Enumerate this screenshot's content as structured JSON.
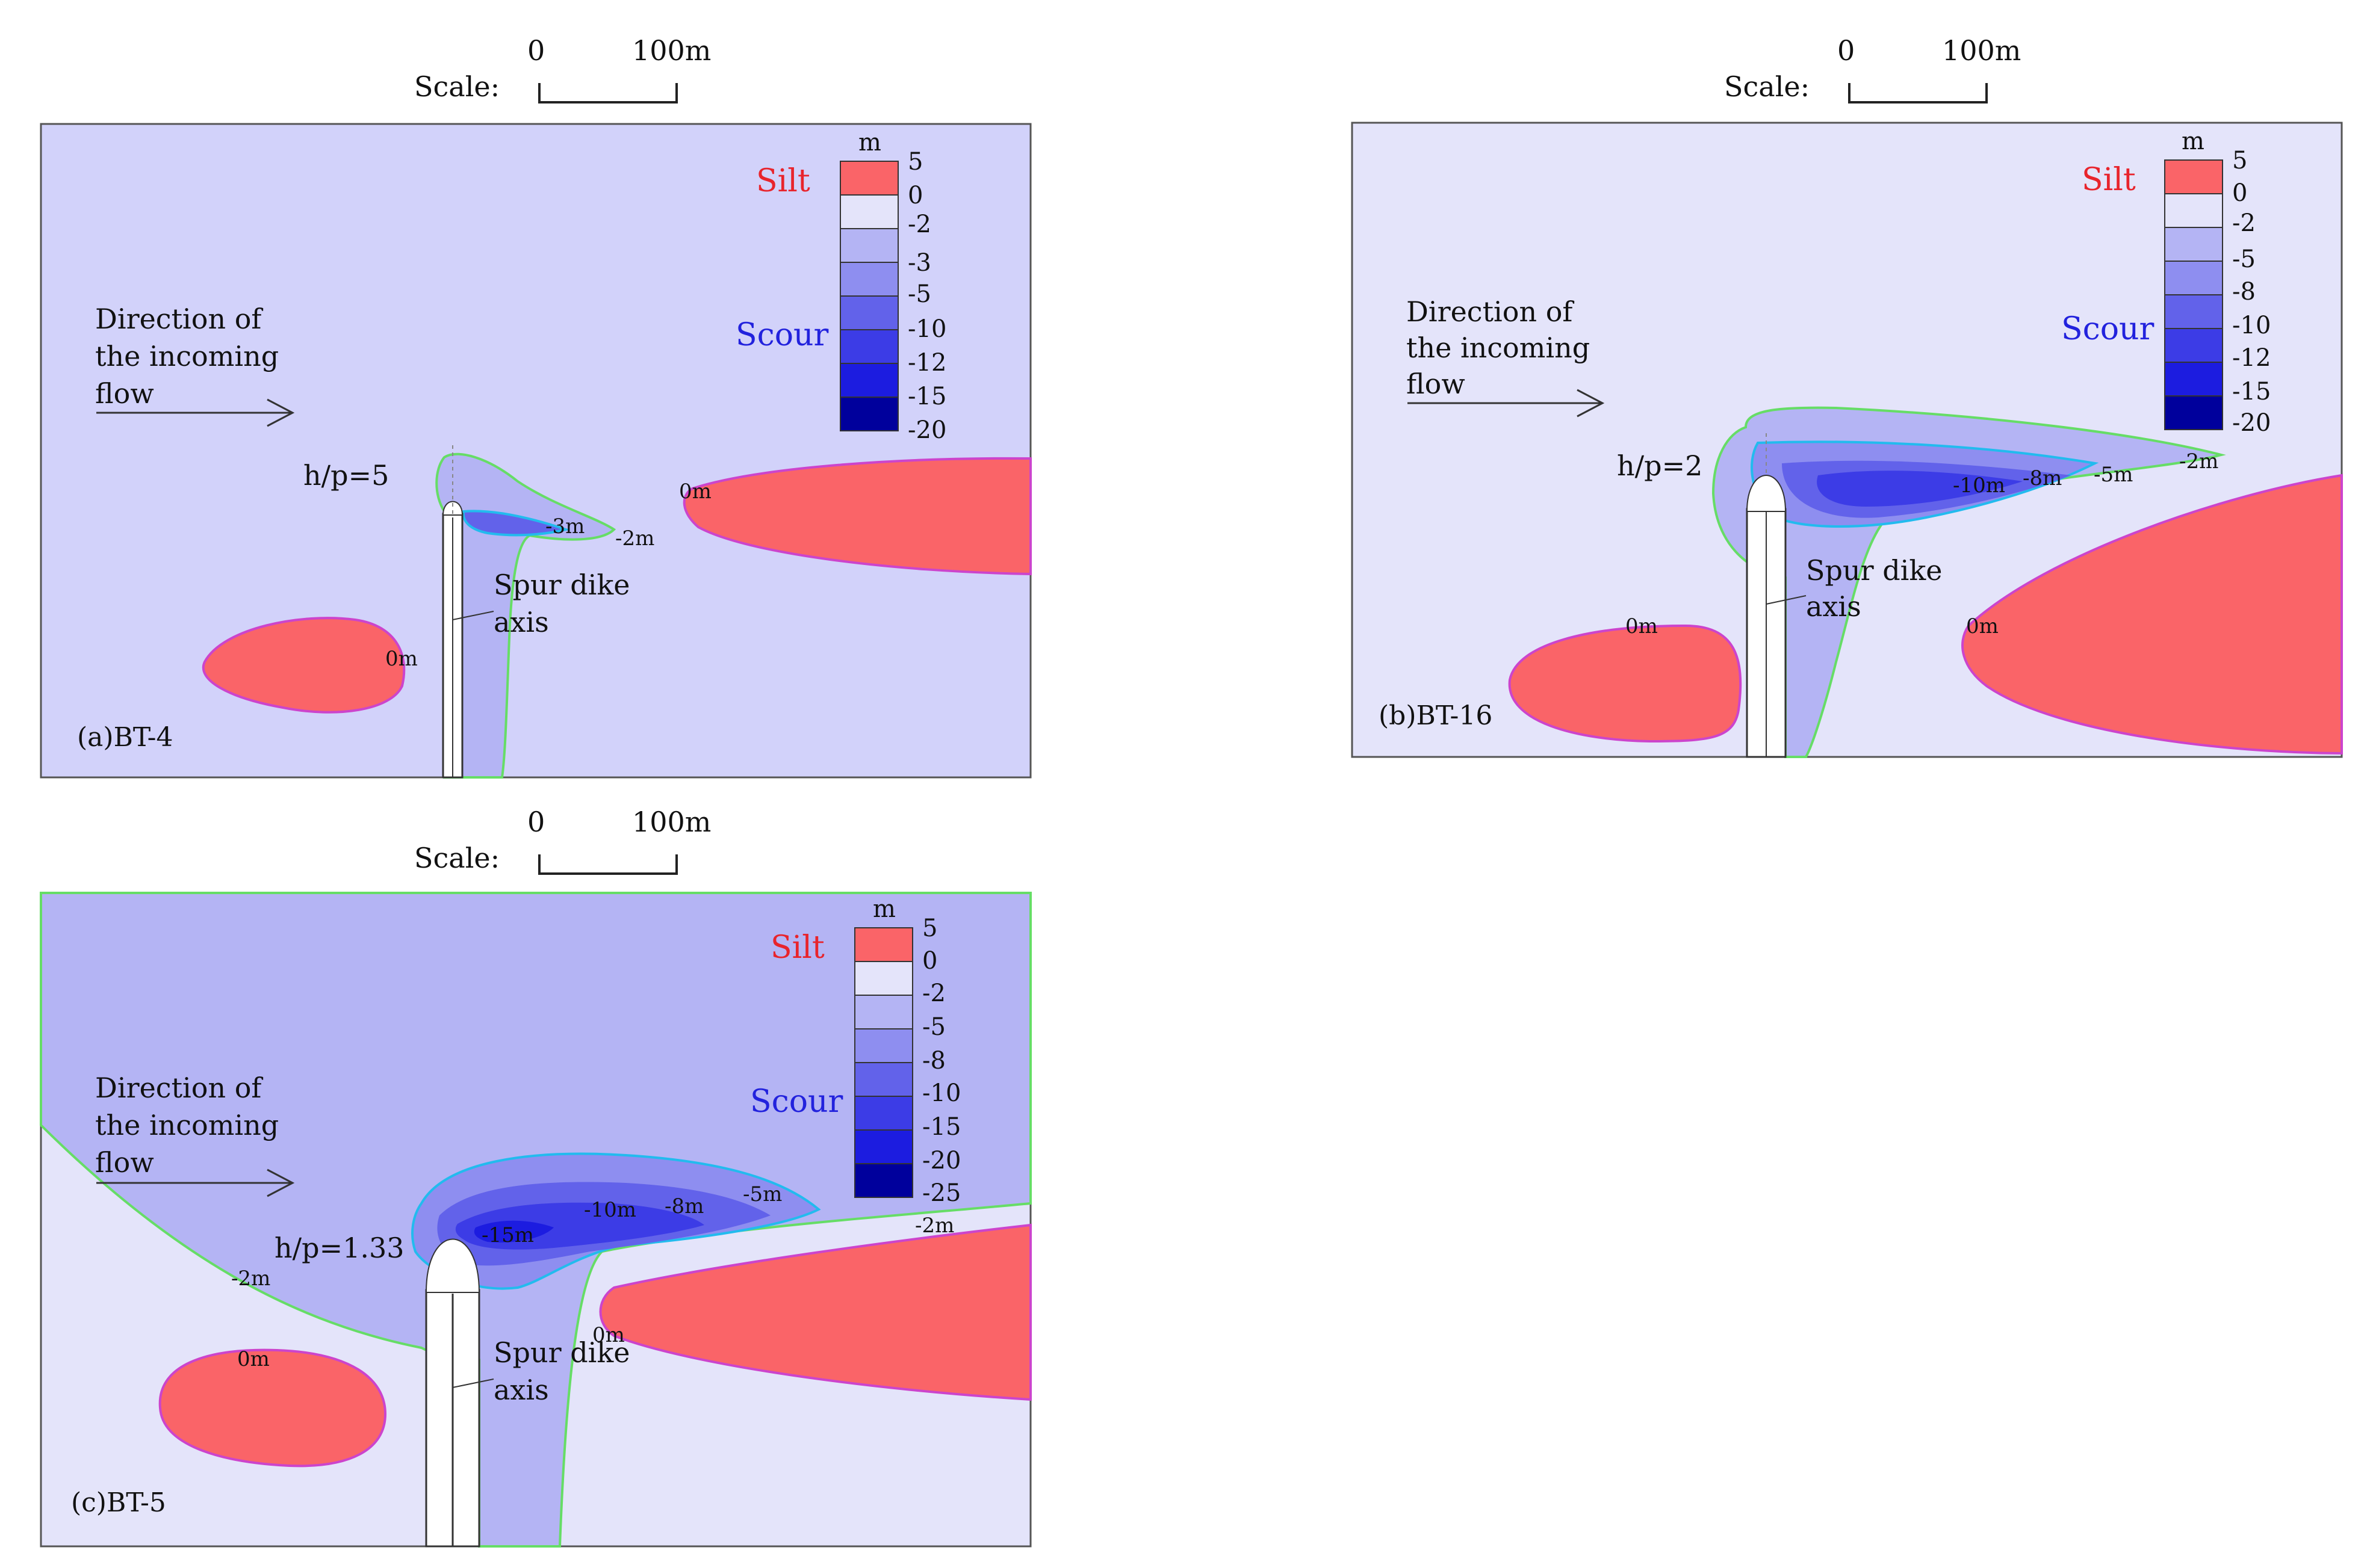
{
  "figure": {
    "panels": [
      {
        "id": "a",
        "caption": "(a)BT-4",
        "ratio": "h/p=5",
        "scale": {
          "zero": "0",
          "hundred": "100m",
          "label": "Scale:"
        },
        "legend": {
          "unit": "m",
          "values": [
            "5",
            "0",
            "-2",
            "-3",
            "-5",
            "-10",
            "-12",
            "-15",
            "-20"
          ]
        },
        "silt_label": "Silt",
        "scour_label": "Scour",
        "flow_label": [
          "Direction of",
          "the incoming",
          "flow"
        ],
        "dike_label": [
          "Spur dike",
          "axis"
        ],
        "contour_labels": [
          "0m",
          "0m",
          "-3m",
          "-2m"
        ]
      },
      {
        "id": "b",
        "caption": "(b)BT-16",
        "ratio": "h/p=2",
        "scale": {
          "zero": "0",
          "hundred": "100m",
          "label": "Scale:"
        },
        "legend": {
          "unit": "m",
          "values": [
            "5",
            "0",
            "-2",
            "-5",
            "-8",
            "-10",
            "-12",
            "-15",
            "-20"
          ]
        },
        "silt_label": "Silt",
        "scour_label": "Scour",
        "flow_label": [
          "Direction of",
          "the incoming",
          "flow"
        ],
        "dike_label": [
          "Spur dike",
          "axis"
        ],
        "contour_labels": [
          "-10m",
          "-8m",
          "-5m",
          "-2m",
          "0m",
          "0m"
        ]
      },
      {
        "id": "c",
        "caption": "(c)BT-5",
        "ratio": "h/p=1.33",
        "scale": {
          "zero": "0",
          "hundred": "100m",
          "label": "Scale:"
        },
        "legend": {
          "unit": "m",
          "values": [
            "5",
            "0",
            "-2",
            "-5",
            "-8",
            "-10",
            "-15",
            "-20",
            "-25"
          ]
        },
        "silt_label": "Silt",
        "scour_label": "Scour",
        "flow_label": [
          "Direction of",
          "the incoming",
          "flow"
        ],
        "dike_label": [
          "Spur dike",
          "axis"
        ],
        "contour_labels": [
          "-15m",
          "-10m",
          "-8m",
          "-5m",
          "-2m",
          "-2m",
          "0m",
          "0m"
        ]
      }
    ],
    "colors": {
      "silt": "#fa6468",
      "bg_light": "#e4e4fa",
      "bg_mid": "#d2d2fa",
      "level1": "#b4b4f4",
      "level2": "#8e8ef0",
      "level3": "#6262ea",
      "level4": "#3c3ce6",
      "level5": "#1c1ce0",
      "level6": "#0808c8",
      "level7": "#00009c",
      "contour_green": "#66dd66",
      "contour_cyan": "#22bbee",
      "silt_edge": "#cc44cc"
    }
  }
}
